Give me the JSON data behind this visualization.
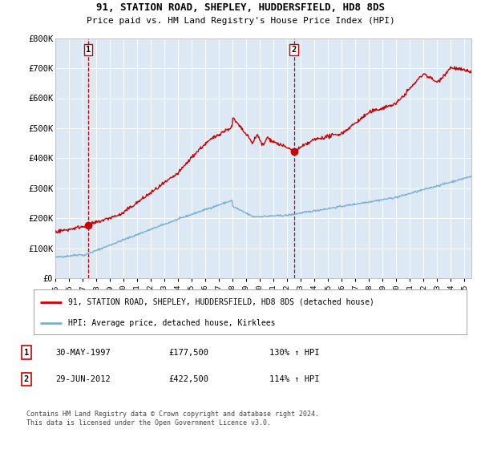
{
  "title_line1": "91, STATION ROAD, SHEPLEY, HUDDERSFIELD, HD8 8DS",
  "title_line2": "Price paid vs. HM Land Registry's House Price Index (HPI)",
  "legend_line1": "91, STATION ROAD, SHEPLEY, HUDDERSFIELD, HD8 8DS (detached house)",
  "legend_line2": "HPI: Average price, detached house, Kirklees",
  "transaction1_date": "30-MAY-1997",
  "transaction1_price": "£177,500",
  "transaction1_hpi": "130% ↑ HPI",
  "transaction2_date": "29-JUN-2012",
  "transaction2_price": "£422,500",
  "transaction2_hpi": "114% ↑ HPI",
  "vline1_year": 1997.41,
  "vline2_year": 2012.49,
  "marker1_x": 1997.41,
  "marker1_y": 177500,
  "marker2_x": 2012.49,
  "marker2_y": 422500,
  "ylim": [
    0,
    800000
  ],
  "xlim_start": 1995.0,
  "xlim_end": 2025.5,
  "bg_color": "#dce9f5",
  "red_line_color": "#cc0000",
  "blue_line_color": "#7ab0d4",
  "vline_color": "#cc0000",
  "footer_text": "Contains HM Land Registry data © Crown copyright and database right 2024.\nThis data is licensed under the Open Government Licence v3.0.",
  "yticks": [
    0,
    100000,
    200000,
    300000,
    400000,
    500000,
    600000,
    700000,
    800000
  ],
  "ytick_labels": [
    "£0",
    "£100K",
    "£200K",
    "£300K",
    "£400K",
    "£500K",
    "£600K",
    "£700K",
    "£800K"
  ],
  "xticks": [
    1995,
    1996,
    1997,
    1998,
    1999,
    2000,
    2001,
    2002,
    2003,
    2004,
    2005,
    2006,
    2007,
    2008,
    2009,
    2010,
    2011,
    2012,
    2013,
    2014,
    2015,
    2016,
    2017,
    2018,
    2019,
    2020,
    2021,
    2022,
    2023,
    2024,
    2025
  ]
}
